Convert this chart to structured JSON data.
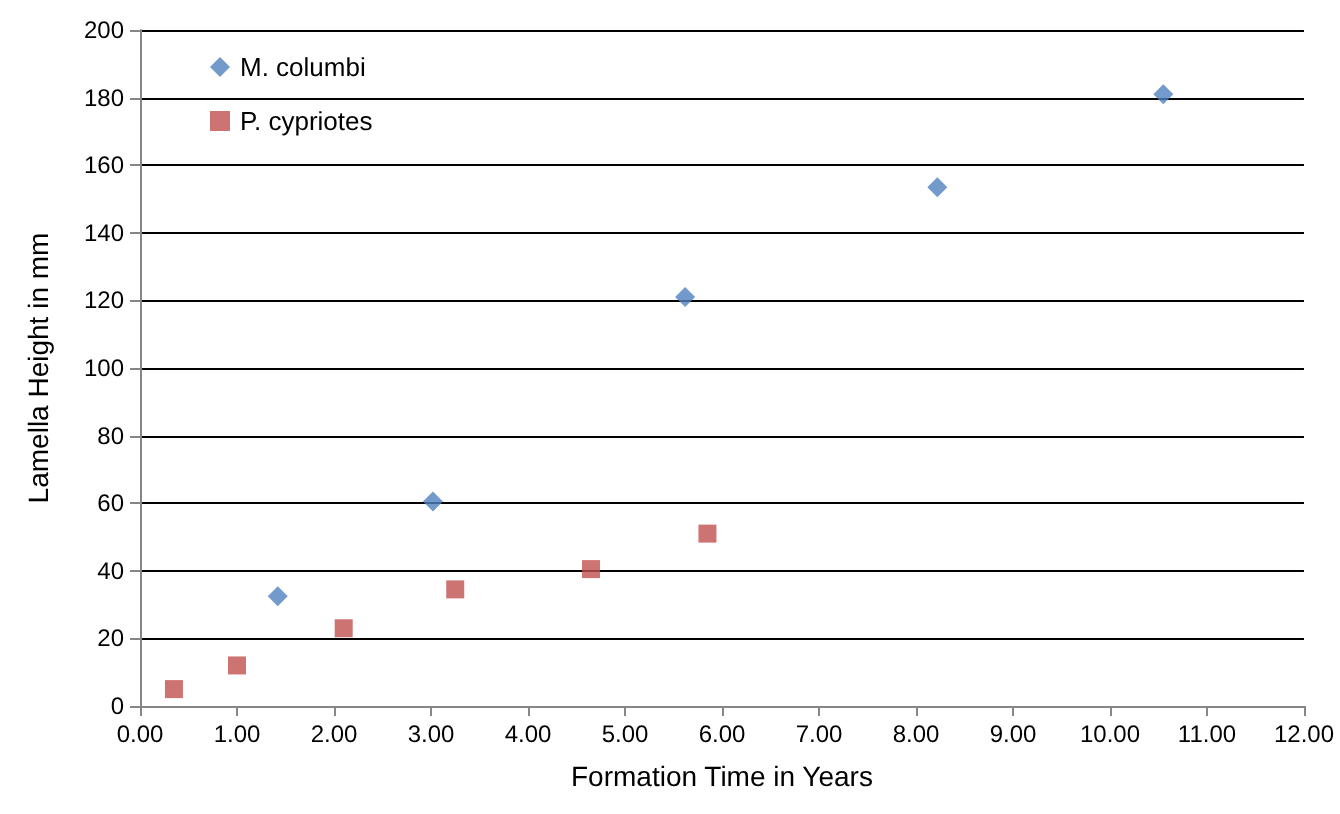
{
  "chart_data": {
    "type": "scatter",
    "xlabel": "Formation Time in Years",
    "ylabel": "Lamella Height in mm",
    "xlim": [
      0,
      12
    ],
    "xticks": [
      {
        "value": 0,
        "label": "0.00"
      },
      {
        "value": 1,
        "label": "1.00"
      },
      {
        "value": 2,
        "label": "2.00"
      },
      {
        "value": 3,
        "label": "3.00"
      },
      {
        "value": 4,
        "label": "4.00"
      },
      {
        "value": 5,
        "label": "5.00"
      },
      {
        "value": 6,
        "label": "6.00"
      },
      {
        "value": 7,
        "label": "7.00"
      },
      {
        "value": 8,
        "label": "8.00"
      },
      {
        "value": 9,
        "label": "9.00"
      },
      {
        "value": 10,
        "label": "10.00"
      },
      {
        "value": 11,
        "label": "11.00"
      },
      {
        "value": 12,
        "label": "12.00"
      }
    ],
    "ylim": [
      0,
      200
    ],
    "yticks": [
      0,
      20,
      40,
      60,
      80,
      100,
      120,
      140,
      160,
      180,
      200
    ],
    "grid": "y",
    "legend": "top left",
    "series": [
      {
        "name": "M. columbi",
        "color": "#4f81bd",
        "marker": "diamond",
        "x": [
          1.42,
          3.02,
          5.62,
          8.22,
          10.55
        ],
        "values": [
          32.5,
          60.5,
          121,
          153.5,
          181
        ]
      },
      {
        "name": "P. cypriotes",
        "color": "#c0504d",
        "marker": "square",
        "x": [
          0.35,
          1.0,
          2.1,
          3.25,
          4.65,
          5.85
        ],
        "values": [
          5,
          12,
          23,
          34.5,
          40.5,
          51
        ]
      }
    ]
  }
}
